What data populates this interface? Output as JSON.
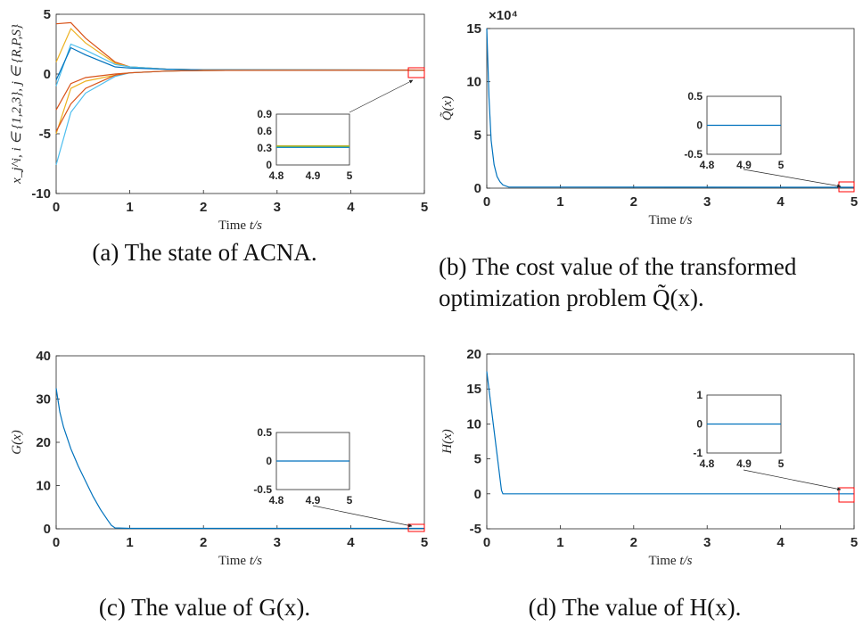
{
  "chart_data": [
    {
      "id": "a",
      "type": "line",
      "xlabel": "Time t/s",
      "ylabel": "x_j^i, i ∈ {1,2,3}, j ∈ {R,P,S}",
      "xlim": [
        0,
        5
      ],
      "ylim": [
        -10,
        5
      ],
      "xticks": [
        "0",
        "1",
        "2",
        "3",
        "4",
        "5"
      ],
      "yticks": [
        "-10",
        "-5",
        "0",
        "5"
      ],
      "caption": "(a)  The state of ACNA.",
      "series": [
        {
          "color": "#D95319",
          "x": [
            0,
            0.2,
            0.4,
            0.8,
            1,
            1.5,
            2,
            5
          ],
          "y": [
            4.2,
            4.3,
            3,
            1,
            0.6,
            0.4,
            0.35,
            0.33
          ]
        },
        {
          "color": "#EDB120",
          "x": [
            0,
            0.2,
            0.4,
            0.8,
            1,
            1.5,
            2,
            5
          ],
          "y": [
            1,
            3.8,
            2.6,
            0.9,
            0.6,
            0.4,
            0.35,
            0.33
          ]
        },
        {
          "color": "#4DBEEE",
          "x": [
            0,
            0.2,
            0.4,
            0.8,
            1,
            1.5,
            2,
            5
          ],
          "y": [
            -1,
            2.5,
            2,
            0.8,
            0.6,
            0.4,
            0.35,
            0.33
          ]
        },
        {
          "color": "#0072BD",
          "x": [
            0,
            0.2,
            0.4,
            0.8,
            1,
            1.5,
            2,
            5
          ],
          "y": [
            -0.5,
            2.2,
            1.6,
            0.6,
            0.5,
            0.4,
            0.35,
            0.33
          ]
        },
        {
          "color": "#D95319",
          "x": [
            0,
            0.2,
            0.4,
            0.8,
            1,
            1.5,
            2,
            5
          ],
          "y": [
            -3,
            -0.8,
            -0.3,
            0,
            0.1,
            0.25,
            0.3,
            0.33
          ]
        },
        {
          "color": "#EDB120",
          "x": [
            0,
            0.2,
            0.4,
            0.8,
            1,
            1.5,
            2,
            5
          ],
          "y": [
            -5,
            -1.2,
            -0.6,
            -0.1,
            0.1,
            0.25,
            0.3,
            0.33
          ]
        },
        {
          "color": "#4DBEEE",
          "x": [
            0,
            0.2,
            0.4,
            0.8,
            1,
            1.5,
            2,
            5
          ],
          "y": [
            -7.6,
            -3.2,
            -1.6,
            -0.2,
            0.1,
            0.25,
            0.3,
            0.33
          ]
        },
        {
          "color": "#D95319",
          "x": [
            0,
            0.2,
            0.4,
            0.8,
            1,
            1.5,
            2,
            5
          ],
          "y": [
            -4.8,
            -2.5,
            -1.2,
            -0.1,
            0.1,
            0.25,
            0.3,
            0.33
          ]
        }
      ],
      "inset": {
        "xlim": [
          4.8,
          5
        ],
        "ylim": [
          0,
          0.9
        ],
        "xticks": [
          "4.8",
          "4.9",
          "5"
        ],
        "yticks": [
          "0",
          "0.3",
          "0.6",
          "0.9"
        ],
        "series": [
          {
            "color": "#0072BD",
            "y": 0.31
          },
          {
            "color": "#4DBEEE",
            "y": 0.32
          },
          {
            "color": "#EDB120",
            "y": 0.34
          },
          {
            "color": "#77AC30",
            "y": 0.33
          }
        ]
      }
    },
    {
      "id": "b",
      "type": "line",
      "xlabel": "Time t/s",
      "ylabel": "Q̃(x)",
      "exponent": "×10⁴",
      "xlim": [
        0,
        5
      ],
      "ylim": [
        0,
        15
      ],
      "xticks": [
        "0",
        "1",
        "2",
        "3",
        "4",
        "5"
      ],
      "yticks": [
        "0",
        "5",
        "10",
        "15"
      ],
      "caption_lines": [
        "(b)  The cost value of the transformed",
        "optimization problem Q̃(x)."
      ],
      "series": [
        {
          "color": "#0072BD",
          "x": [
            0,
            0.03,
            0.06,
            0.1,
            0.14,
            0.18,
            0.22,
            0.3,
            5
          ],
          "y": [
            15,
            8.5,
            4.5,
            2.2,
            1.1,
            0.6,
            0.3,
            0.1,
            0.08
          ]
        }
      ],
      "inset": {
        "xlim": [
          4.8,
          5
        ],
        "ylim": [
          -0.5,
          0.5
        ],
        "xticks": [
          "4.8",
          "4.9",
          "5"
        ],
        "yticks": [
          "-0.5",
          "0",
          "0.5"
        ],
        "series": [
          {
            "color": "#0072BD",
            "y": 0
          }
        ]
      }
    },
    {
      "id": "c",
      "type": "line",
      "xlabel": "Time t/s",
      "ylabel": "G(x)",
      "xlim": [
        0,
        5
      ],
      "ylim": [
        0,
        40
      ],
      "xticks": [
        "0",
        "1",
        "2",
        "3",
        "4",
        "5"
      ],
      "yticks": [
        "0",
        "10",
        "20",
        "30",
        "40"
      ],
      "caption": "(c)  The value of G(x).",
      "series": [
        {
          "color": "#0072BD",
          "x": [
            0,
            0.05,
            0.1,
            0.2,
            0.3,
            0.4,
            0.5,
            0.6,
            0.7,
            0.75,
            0.8,
            1,
            5
          ],
          "y": [
            32.5,
            27,
            23.5,
            18.5,
            14.5,
            11,
            7.5,
            4.5,
            2,
            0.8,
            0.2,
            0.1,
            0.1
          ]
        }
      ],
      "inset": {
        "xlim": [
          4.8,
          5
        ],
        "ylim": [
          -0.5,
          0.5
        ],
        "xticks": [
          "4.8",
          "4.9",
          "5"
        ],
        "yticks": [
          "-0.5",
          "0",
          "0.5"
        ],
        "series": [
          {
            "color": "#0072BD",
            "y": 0
          }
        ]
      }
    },
    {
      "id": "d",
      "type": "line",
      "xlabel": "Time t/s",
      "ylabel": "H(x)",
      "xlim": [
        0,
        5
      ],
      "ylim": [
        -5,
        20
      ],
      "xticks": [
        "0",
        "1",
        "2",
        "3",
        "4",
        "5"
      ],
      "yticks": [
        "-5",
        "0",
        "5",
        "10",
        "15",
        "20"
      ],
      "caption": "(d)  The value of H(x).",
      "series": [
        {
          "color": "#0072BD",
          "x": [
            0,
            0.2,
            0.22,
            5
          ],
          "y": [
            17.5,
            0.5,
            0,
            0
          ]
        }
      ],
      "inset": {
        "xlim": [
          4.8,
          5
        ],
        "ylim": [
          -1,
          1
        ],
        "xticks": [
          "4.8",
          "4.9",
          "5"
        ],
        "yticks": [
          "-1",
          "0",
          "1"
        ],
        "series": [
          {
            "color": "#0072BD",
            "y": 0
          }
        ]
      }
    }
  ]
}
